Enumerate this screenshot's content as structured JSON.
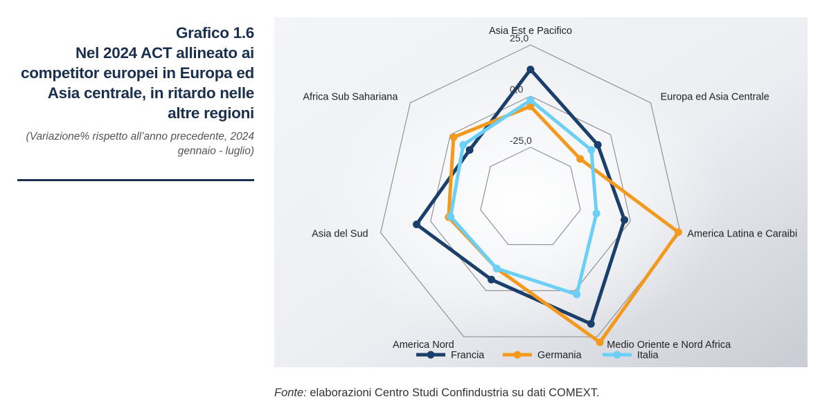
{
  "header": {
    "title_line1": "Grafico 1.6",
    "title_line2": "Nel 2024 ACT allineato ai competitor europei in Europa ed Asia centrale, in ritardo nelle altre regioni",
    "subtitle": "(Variazione% rispetto all’anno precedente, 2024 gennaio - luglio)"
  },
  "source": {
    "prefix": "Fonte:",
    "text": "elaborazioni Centro Studi Confindustria su dati COMEXT."
  },
  "chart_data": {
    "type": "radar",
    "axes": [
      "Asia Est e Pacifico",
      "Europa ed Asia Centrale",
      "America Latina e Caraibi",
      "Medio Oriente e Nord Africa",
      "America Nord",
      "Asia del Sud",
      "Africa Sub Sahariana"
    ],
    "rlim": [
      -50,
      25
    ],
    "ring_values": [
      -50,
      -25,
      0,
      25
    ],
    "ring_labels": [
      "-25,0",
      "0,0",
      "25,0"
    ],
    "series": [
      {
        "name": "Francia",
        "color": "#1b3f6b",
        "values": [
          13,
          -8,
          -3,
          18,
          -6,
          7,
          -12
        ]
      },
      {
        "name": "Germania",
        "color": "#f39a1e",
        "values": [
          -5,
          -19,
          24,
          28,
          -12,
          -9,
          -2
        ]
      },
      {
        "name": "Italia",
        "color": "#6ccff5",
        "values": [
          -2,
          -12,
          -17,
          2,
          -12,
          -10,
          -8
        ]
      }
    ],
    "legend_position": "bottom"
  }
}
